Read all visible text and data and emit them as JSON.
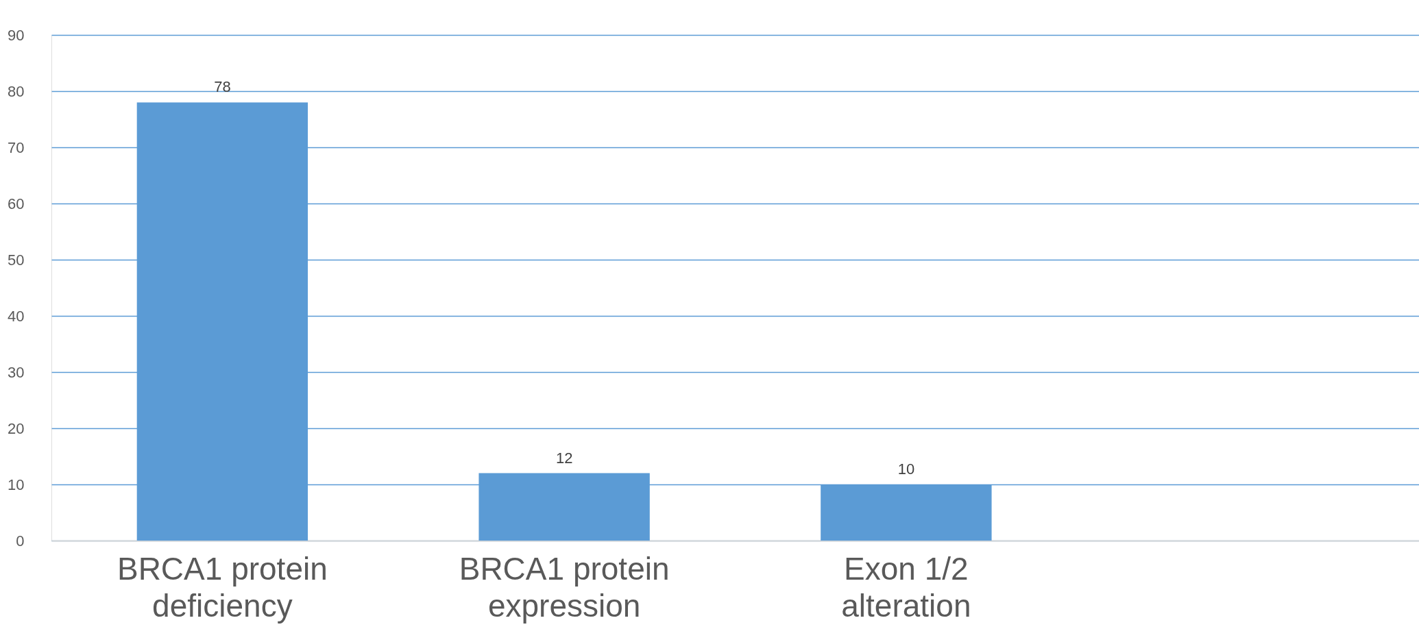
{
  "chart_data": {
    "type": "bar",
    "categories": [
      "BRCA1 protein deficiency",
      "BRCA1 protein expression",
      "Exon 1/2 alteration",
      null
    ],
    "values": [
      78,
      12,
      10,
      null
    ],
    "color": "#5b9bd5",
    "ylim": [
      0,
      90
    ],
    "yticks": [
      0,
      10,
      20,
      30,
      40,
      50,
      60,
      70,
      80,
      90
    ],
    "grid": "y",
    "data_labels": true
  }
}
